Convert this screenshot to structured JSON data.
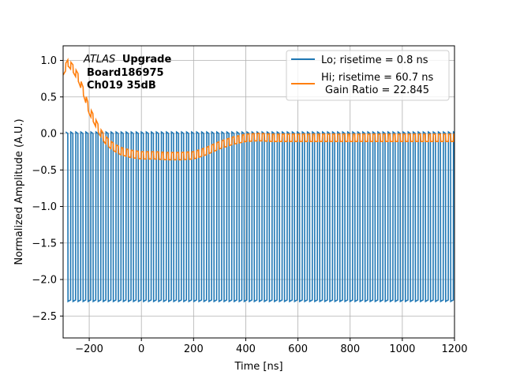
{
  "chart_data": {
    "type": "line",
    "title": "",
    "xlabel": "Time [ns]",
    "ylabel": "Normalized Amplitude (A.U.)",
    "xlim": [
      -300,
      1200
    ],
    "ylim": [
      -2.8,
      1.2
    ],
    "grid": true,
    "legend_position": "top-right",
    "x_ticks": [
      -200,
      0,
      200,
      400,
      600,
      800,
      1000,
      1200
    ],
    "x_tick_labels": [
      "−200",
      "0",
      "200",
      "400",
      "600",
      "800",
      "1000",
      "1200"
    ],
    "y_ticks": [
      1.0,
      0.5,
      0.0,
      -0.5,
      -1.0,
      -1.5,
      -2.0,
      -2.5
    ],
    "y_tick_labels": [
      "1.0",
      "0.5",
      "0.0",
      "−0.5",
      "−1.0",
      "−1.5",
      "−2.0",
      "−2.5"
    ],
    "annotation": {
      "italic": "ATLAS",
      "line1": "Upgrade",
      "line2": "Board186975",
      "line3": "Ch019 35dB"
    },
    "series": [
      {
        "name": "Lo; risetime = 0.8 ns",
        "color": "#1f77b4",
        "kind": "square_oscillation",
        "x_start": -290,
        "x_end": 1200,
        "period_ns": 19.3,
        "high": 0.01,
        "low": -2.3,
        "duty_high": 0.45
      },
      {
        "name": "Hi; risetime = 60.7 ns",
        "name_line2": "Gain Ratio = 22.845",
        "color": "#ff7f0e",
        "kind": "envelope_with_ripple",
        "ripple_period_ns": 19.3,
        "ripple_amplitude": 0.05,
        "x": [
          -300,
          -280,
          -260,
          -240,
          -220,
          -200,
          -180,
          -160,
          -140,
          -120,
          -100,
          -80,
          -60,
          -40,
          -20,
          0,
          50,
          100,
          150,
          200,
          250,
          300,
          350,
          400,
          450,
          500,
          600,
          800,
          1000,
          1200
        ],
        "y": [
          0.85,
          0.97,
          0.88,
          0.75,
          0.55,
          0.32,
          0.18,
          0.03,
          -0.08,
          -0.15,
          -0.2,
          -0.24,
          -0.26,
          -0.28,
          -0.29,
          -0.3,
          -0.3,
          -0.31,
          -0.31,
          -0.3,
          -0.24,
          -0.16,
          -0.1,
          -0.06,
          -0.05,
          -0.06,
          -0.06,
          -0.06,
          -0.06,
          -0.06
        ]
      }
    ]
  }
}
